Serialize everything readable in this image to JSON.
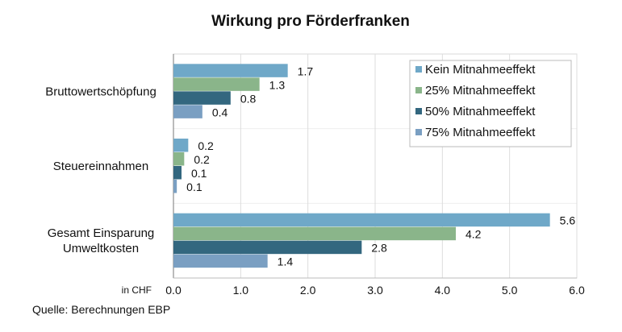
{
  "chart_data": {
    "type": "bar",
    "orientation": "horizontal",
    "title": "Wirkung pro Förderfranken",
    "unit_label": "in CHF",
    "source": "Quelle: Berechnungen EBP",
    "categories": [
      "Bruttowertschöpfung",
      "Steuereinnahmen",
      "Gesamt Einsparung Umweltkosten"
    ],
    "category_lines": [
      [
        "Bruttowertschöpfung"
      ],
      [
        "Steuereinnahmen"
      ],
      [
        "Gesamt Einsparung",
        "Umweltkosten"
      ]
    ],
    "series": [
      {
        "name": "Kein Mitnahmeeffekt",
        "color": "#6fa8c8",
        "values": [
          1.7,
          0.22,
          5.6
        ],
        "labels": [
          "1.7",
          "0.2",
          "5.6"
        ]
      },
      {
        "name": "25% Mitnahmeeffekt",
        "color": "#8ab58a",
        "values": [
          1.28,
          0.16,
          4.2
        ],
        "labels": [
          "1.3",
          "0.2",
          "4.2"
        ]
      },
      {
        "name": "50% Mitnahmeeffekt",
        "color": "#33677f",
        "values": [
          0.85,
          0.12,
          2.8
        ],
        "labels": [
          "0.8",
          "0.1",
          "2.8"
        ]
      },
      {
        "name": "75% Mitnahmeeffekt",
        "color": "#7a9fc2",
        "values": [
          0.43,
          0.05,
          1.4
        ],
        "labels": [
          "0.4",
          "0.1",
          "1.4"
        ]
      }
    ],
    "xlim": [
      0,
      6
    ],
    "xticks": [
      "0.0",
      "1.0",
      "2.0",
      "3.0",
      "4.0",
      "5.0",
      "6.0"
    ],
    "grid": true,
    "legend_position": "top-right"
  }
}
